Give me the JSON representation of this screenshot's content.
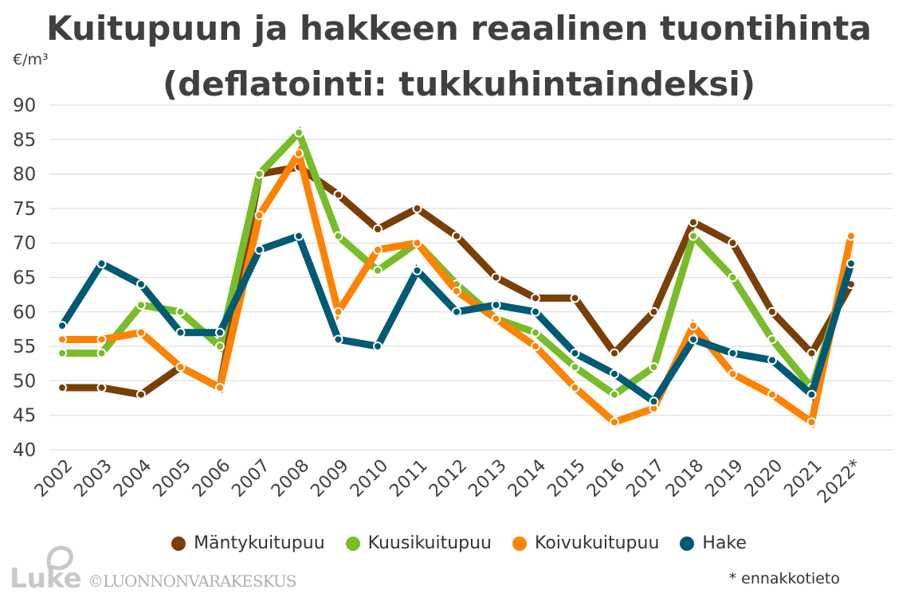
{
  "chart_data": {
    "type": "line",
    "title": "Kuitupuun ja hakkeen reaalinen tuontihinta",
    "subtitle": "(deflatointi: tukkuhintaindeksi)",
    "ylabel": "€/m³",
    "ylim": [
      40,
      90
    ],
    "yticks": [
      40,
      45,
      50,
      55,
      60,
      65,
      70,
      75,
      80,
      85,
      90
    ],
    "grid": true,
    "legend_position": "bottom",
    "categories": [
      "2002",
      "2003",
      "2004",
      "2005",
      "2006",
      "2007",
      "2008",
      "2009",
      "2010",
      "2011",
      "2012",
      "2013",
      "2014",
      "2015",
      "2016",
      "2017",
      "2018",
      "2019",
      "2020",
      "2021",
      "2022*"
    ],
    "series": [
      {
        "name": "Mäntykuitupuu",
        "color": "#7a3e07",
        "values": [
          49,
          49,
          48,
          52,
          49,
          80,
          81,
          77,
          72,
          75,
          71,
          65,
          62,
          62,
          54,
          60,
          73,
          70,
          60,
          54,
          64
        ]
      },
      {
        "name": "Kuusikuitupuu",
        "color": "#78bc2a",
        "values": [
          54,
          54,
          61,
          60,
          55,
          80,
          86,
          71,
          66,
          70,
          64,
          59,
          57,
          52,
          48,
          52,
          71,
          65,
          56,
          49,
          67
        ]
      },
      {
        "name": "Koivukuitupuu",
        "color": "#ff8200",
        "values": [
          56,
          56,
          57,
          52,
          49,
          74,
          83,
          60,
          69,
          70,
          63,
          59,
          55,
          49,
          44,
          46,
          58,
          51,
          48,
          44,
          71
        ]
      },
      {
        "name": "Hake",
        "color": "#005a73",
        "values": [
          58,
          67,
          64,
          57,
          57,
          69,
          71,
          56,
          55,
          66,
          60,
          61,
          60,
          54,
          51,
          47,
          56,
          54,
          53,
          48,
          67
        ]
      }
    ],
    "footnote": "* ennakkotieto"
  },
  "branding": {
    "logo": "Luke",
    "copyright": "©LUONNONVARAKESKUS"
  }
}
